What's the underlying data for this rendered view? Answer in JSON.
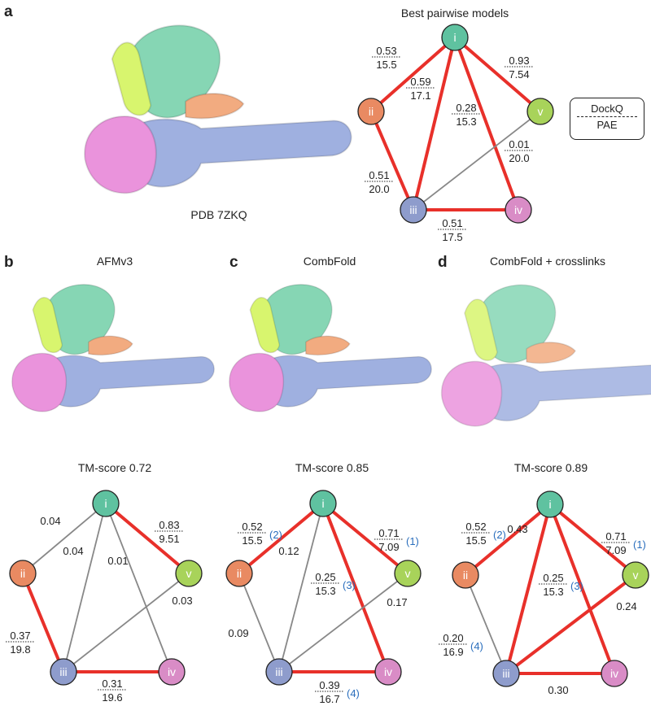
{
  "legend": {
    "dockq": "DockQ",
    "pae": "PAE"
  },
  "colors": {
    "highlight_edge": "#e8302a",
    "plain_edge": "#888888",
    "rank": "#2a6ebd",
    "nodes": {
      "i": "#5fc2a0",
      "ii": "#e98a62",
      "iii": "#8e9ccc",
      "iv": "#d98cc6",
      "v": "#a8d35a"
    },
    "chains": {
      "i": "#86d6b4",
      "ii": "#f2ab80",
      "iii": "#9fb0e0",
      "iv": "#ea93dc",
      "v": "#d8f56e"
    }
  },
  "panels": [
    {
      "label": "a",
      "title": "Best pairwise models",
      "caption": "PDB 7ZKQ",
      "edges": [
        {
          "a": "i",
          "b": "ii",
          "dockq": "0.53",
          "pae": "15.5",
          "red": true
        },
        {
          "a": "i",
          "b": "iii",
          "dockq": "0.59",
          "pae": "17.1",
          "red": true
        },
        {
          "a": "i",
          "b": "iv",
          "dockq": "0.28",
          "pae": "15.3",
          "red": true
        },
        {
          "a": "i",
          "b": "v",
          "dockq": "0.93",
          "pae": "7.54",
          "red": true
        },
        {
          "a": "ii",
          "b": "iii",
          "dockq": "0.51",
          "pae": "20.0",
          "red": true
        },
        {
          "a": "iii",
          "b": "v",
          "dockq": "0.01",
          "pae": "20.0",
          "red": false
        },
        {
          "a": "iii",
          "b": "iv",
          "dockq": "0.51",
          "pae": "17.5",
          "red": true
        }
      ]
    },
    {
      "label": "b",
      "title": "AFMv3",
      "tm_score": "TM-score 0.72",
      "edges": [
        {
          "a": "i",
          "b": "ii",
          "dockq": "0.04",
          "red": false
        },
        {
          "a": "i",
          "b": "iii",
          "dockq": "0.04",
          "red": false
        },
        {
          "a": "i",
          "b": "iv",
          "dockq": "0.01",
          "red": false
        },
        {
          "a": "i",
          "b": "v",
          "dockq": "0.83",
          "pae": "9.51",
          "red": true
        },
        {
          "a": "ii",
          "b": "iii",
          "dockq": "0.37",
          "pae": "19.8",
          "red": true
        },
        {
          "a": "iii",
          "b": "v",
          "dockq": "0.03",
          "red": false
        },
        {
          "a": "iii",
          "b": "iv",
          "dockq": "0.31",
          "pae": "19.6",
          "red": true
        }
      ]
    },
    {
      "label": "c",
      "title": "CombFold",
      "tm_score": "TM-score 0.85",
      "edges": [
        {
          "a": "i",
          "b": "ii",
          "dockq": "0.52",
          "pae": "15.5",
          "rank": "(2)",
          "red": true
        },
        {
          "a": "i",
          "b": "iii",
          "dockq": "0.12",
          "red": false
        },
        {
          "a": "i",
          "b": "iv",
          "dockq": "0.25",
          "pae": "15.3",
          "rank": "(3)",
          "red": true
        },
        {
          "a": "i",
          "b": "v",
          "dockq": "0.71",
          "pae": "7.09",
          "rank": "(1)",
          "red": true
        },
        {
          "a": "ii",
          "b": "iii",
          "dockq": "0.09",
          "red": false
        },
        {
          "a": "iii",
          "b": "v",
          "dockq": "0.17",
          "red": false
        },
        {
          "a": "iii",
          "b": "iv",
          "dockq": "0.39",
          "pae": "16.7",
          "rank": "(4)",
          "red": true
        }
      ]
    },
    {
      "label": "d",
      "title": "CombFold + crosslinks",
      "tm_score": "TM-score 0.89",
      "edges": [
        {
          "a": "i",
          "b": "ii",
          "dockq": "0.52",
          "pae": "15.5",
          "rank": "(2)",
          "red": true
        },
        {
          "a": "i",
          "b": "iii",
          "dockq": "0.43",
          "red": true
        },
        {
          "a": "i",
          "b": "iv",
          "dockq": "0.25",
          "pae": "15.3",
          "rank": "(3)",
          "red": true
        },
        {
          "a": "i",
          "b": "v",
          "dockq": "0.71",
          "pae": "7.09",
          "rank": "(1)",
          "red": true
        },
        {
          "a": "ii",
          "b": "iii",
          "dockq": "0.20",
          "pae": "16.9",
          "rank": "(4)",
          "red": false
        },
        {
          "a": "iii",
          "b": "v",
          "dockq": "0.24",
          "red": true
        },
        {
          "a": "iii",
          "b": "iv",
          "dockq": "0.30",
          "red": true
        }
      ]
    }
  ]
}
